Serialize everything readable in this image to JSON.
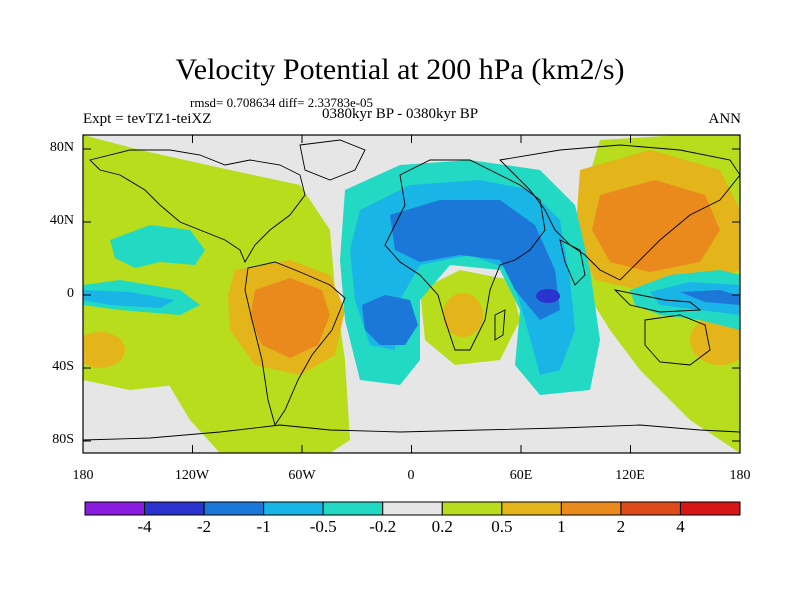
{
  "title": "Velocity Potential at 200 hPa (km2/s)",
  "stats": "rmsd= 0.708634 diff= 2.33783e-05",
  "experiment": "Expt = tevTZ1-teiXZ",
  "period": "0380kyr BP - 0380kyr BP",
  "season": "ANN",
  "map": {
    "lat_ticks": [
      "80N",
      "40N",
      "0",
      "40S",
      "80S"
    ],
    "lon_ticks": [
      "180",
      "120W",
      "60W",
      "0",
      "60E",
      "120E",
      "180"
    ]
  },
  "colorbar": {
    "labels": [
      "-4",
      "-2",
      "-1",
      "-0.5",
      "-0.2",
      "0.2",
      "0.5",
      "1",
      "2",
      "4"
    ],
    "colors": [
      "#8a1ce0",
      "#2b33cf",
      "#1c78d8",
      "#19b5e6",
      "#22d9c4",
      "#e6e6e6",
      "#b7dd1c",
      "#e4b51b",
      "#ea8a1d",
      "#de4b19",
      "#d71717"
    ]
  },
  "colors": {
    "background_land": "#e6e6e6",
    "coast": "#000000"
  }
}
